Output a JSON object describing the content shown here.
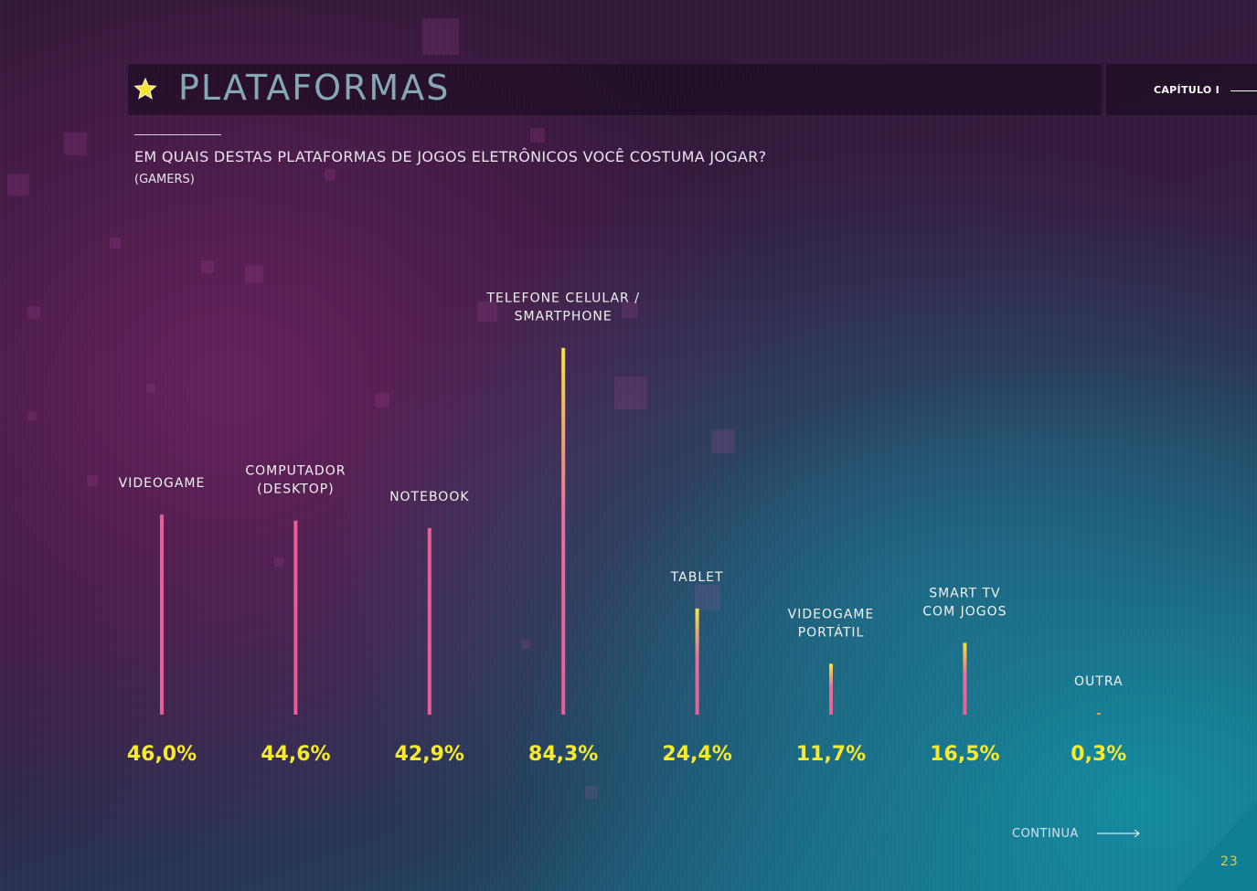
{
  "header": {
    "title": "PLATAFORMAS",
    "chapter": "CAPÍTULO I",
    "question": "EM QUAIS DESTAS PLATAFORMAS DE JOGOS ELETRÔNICOS VOCÊ COSTUMA JOGAR?",
    "subtitle": "(GAMERS)",
    "icon": "star-icon"
  },
  "footer": {
    "continue_label": "CONTINUA",
    "page_number": "23"
  },
  "colors": {
    "bar_pink": "#e85f95",
    "bar_yellow": "#f5e63a",
    "value_yellow": "#f5ea2e",
    "label_white": "#f2f2f2"
  },
  "chart_data": {
    "type": "bar",
    "categories": [
      [
        "VIDEOGAME"
      ],
      [
        "COMPUTADOR",
        "(DESKTOP)"
      ],
      [
        "NOTEBOOK"
      ],
      [
        "TELEFONE CELULAR /",
        "SMARTPHONE"
      ],
      [
        "TABLET"
      ],
      [
        "VIDEOGAME",
        "PORTÁTIL"
      ],
      [
        "SMART TV",
        "COM JOGOS"
      ],
      [
        "OUTRA"
      ]
    ],
    "values": [
      46.0,
      44.6,
      42.9,
      84.3,
      24.4,
      11.7,
      16.5,
      0.3
    ],
    "value_labels": [
      "46,0%",
      "44,6%",
      "42,9%",
      "84,3%",
      "24,4%",
      "11,7%",
      "16,5%",
      "0,3%"
    ],
    "unit": "%",
    "ylim": [
      0,
      100
    ],
    "grid": false,
    "legend": "none"
  }
}
